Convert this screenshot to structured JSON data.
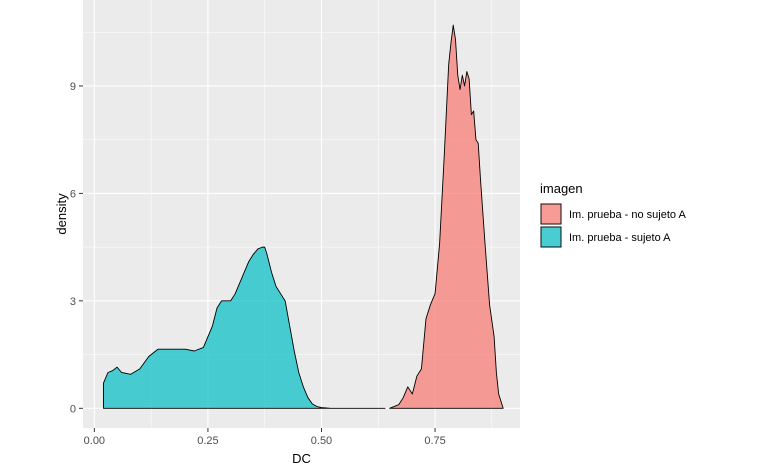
{
  "chart_data": {
    "type": "area",
    "xlabel": "DC",
    "ylabel": "density",
    "xlim": [
      -0.025,
      0.937
    ],
    "ylim": [
      -0.55,
      11.4
    ],
    "x_ticks": [
      0.0,
      0.25,
      0.5,
      0.75
    ],
    "x_tick_labels": [
      "0.00",
      "0.25",
      "0.50",
      "0.75"
    ],
    "y_ticks": [
      0,
      3,
      6,
      9
    ],
    "y_tick_labels": [
      "0",
      "3",
      "6",
      "9"
    ],
    "grid": true,
    "legend": {
      "title": "imagen",
      "placement": "right",
      "entries": [
        "Im. prueba - no sujeto A",
        "Im. prueba - sujeto A"
      ]
    },
    "series": [
      {
        "name": "Im. prueba - no sujeto A",
        "color": "#F8766D",
        "x": [
          0.65,
          0.67,
          0.68,
          0.69,
          0.7,
          0.71,
          0.72,
          0.73,
          0.74,
          0.75,
          0.76,
          0.77,
          0.78,
          0.785,
          0.79,
          0.795,
          0.8,
          0.805,
          0.81,
          0.815,
          0.82,
          0.825,
          0.83,
          0.835,
          0.84,
          0.845,
          0.85,
          0.86,
          0.87,
          0.88,
          0.885,
          0.89,
          0.9
        ],
        "y": [
          0,
          0.1,
          0.3,
          0.6,
          0.4,
          0.9,
          1.1,
          2.5,
          2.9,
          3.2,
          4.6,
          7.0,
          9.6,
          10.2,
          10.7,
          10.3,
          9.3,
          8.9,
          9.3,
          9.0,
          9.4,
          9.2,
          8.2,
          8.3,
          7.5,
          7.4,
          6.4,
          4.6,
          2.9,
          2.0,
          1.0,
          0.4,
          0
        ]
      },
      {
        "name": "Im. prueba - sujeto A",
        "color": "#00BFC4",
        "x": [
          0.02,
          0.025,
          0.03,
          0.04,
          0.05,
          0.06,
          0.08,
          0.1,
          0.12,
          0.14,
          0.16,
          0.18,
          0.2,
          0.22,
          0.24,
          0.25,
          0.26,
          0.27,
          0.28,
          0.29,
          0.3,
          0.31,
          0.32,
          0.33,
          0.34,
          0.35,
          0.36,
          0.37,
          0.375,
          0.38,
          0.39,
          0.4,
          0.41,
          0.42,
          0.43,
          0.44,
          0.45,
          0.46,
          0.47,
          0.48,
          0.49,
          0.5,
          0.52,
          0.55,
          0.58,
          0.61,
          0.64
        ],
        "y": [
          0.7,
          0.85,
          1.0,
          1.05,
          1.15,
          1.0,
          0.95,
          1.1,
          1.45,
          1.65,
          1.65,
          1.65,
          1.65,
          1.6,
          1.7,
          2.0,
          2.3,
          2.8,
          3.0,
          3.0,
          3.0,
          3.2,
          3.5,
          3.8,
          4.1,
          4.3,
          4.45,
          4.5,
          4.5,
          4.3,
          3.8,
          3.4,
          3.2,
          3.0,
          2.3,
          1.6,
          1.0,
          0.6,
          0.3,
          0.12,
          0.05,
          0.02,
          0.0,
          0.0,
          0.0,
          0.0,
          0.0
        ]
      }
    ]
  }
}
